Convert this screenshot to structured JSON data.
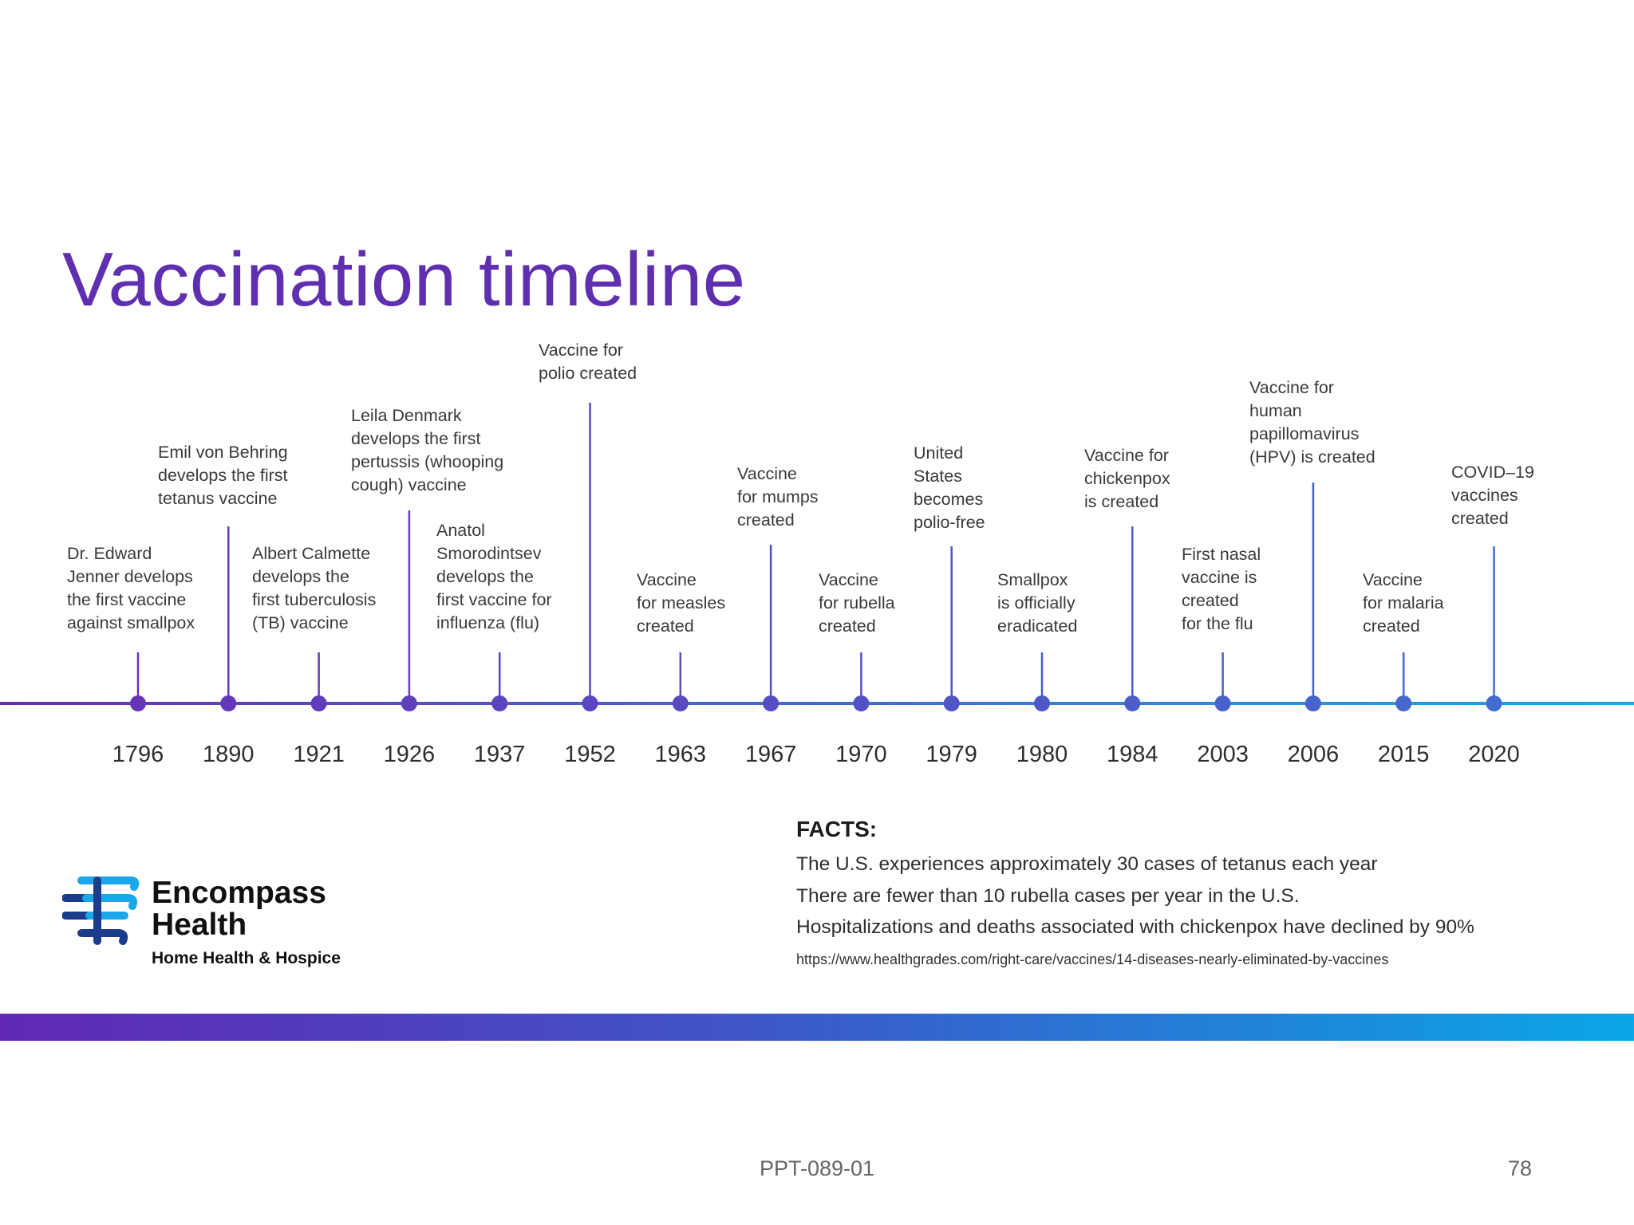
{
  "slide": {
    "title": "Vaccination timeline",
    "footer_code": "PPT-089-01",
    "page_number": "78"
  },
  "timeline": {
    "line_colors": {
      "start": "#6a2fb4",
      "end": "#1aa8ea"
    },
    "events": [
      {
        "year": "1796",
        "text": "Dr. Edward\nJenner develops\nthe first vaccine\nagainst smallpox"
      },
      {
        "year": "1890",
        "text": "Emil von Behring\ndevelops the first\ntetanus vaccine"
      },
      {
        "year": "1921",
        "text": "Albert Calmette\ndevelops the\nfirst tuberculosis\n(TB) vaccine"
      },
      {
        "year": "1926",
        "text": "Leila Denmark\ndevelops the first\npertussis (whooping\ncough) vaccine"
      },
      {
        "year": "1937",
        "text": "Anatol\nSmorodintsev\ndevelops the\nfirst vaccine for\ninfluenza (flu)"
      },
      {
        "year": "1952",
        "text": "Vaccine for\npolio created"
      },
      {
        "year": "1963",
        "text": "Vaccine\nfor measles\ncreated"
      },
      {
        "year": "1967",
        "text": "Vaccine\nfor mumps\ncreated"
      },
      {
        "year": "1970",
        "text": "Vaccine\nfor rubella\ncreated"
      },
      {
        "year": "1979",
        "text": "United\nStates\nbecomes\npolio-free"
      },
      {
        "year": "1980",
        "text": "Smallpox\nis officially\neradicated"
      },
      {
        "year": "1984",
        "text": "Vaccine for\nchickenpox\nis created"
      },
      {
        "year": "2003",
        "text": "First nasal\nvaccine is\ncreated\nfor the flu"
      },
      {
        "year": "2006",
        "text": "Vaccine for\nhuman\npapillomavirus\n(HPV) is created"
      },
      {
        "year": "2015",
        "text": "Vaccine\nfor malaria\ncreated"
      },
      {
        "year": "2020",
        "text": "COVID–19\nvaccines\ncreated"
      }
    ]
  },
  "facts": {
    "heading": "FACTS:",
    "items": [
      "The U.S. experiences approximately 30 cases of tetanus each year",
      "There are fewer than 10 rubella cases per year in the U.S.",
      "Hospitalizations and deaths associated with chickenpox have declined by 90%"
    ],
    "source": "https://www.healthgrades.com/right-care/vaccines/14-diseases-nearly-eliminated-by-vaccines"
  },
  "logo": {
    "name": "Encompass\nHealth",
    "subtitle": "Home Health & Hospice",
    "colors": {
      "dark_blue": "#1b3c8c",
      "light_blue": "#1aa8ea"
    }
  }
}
